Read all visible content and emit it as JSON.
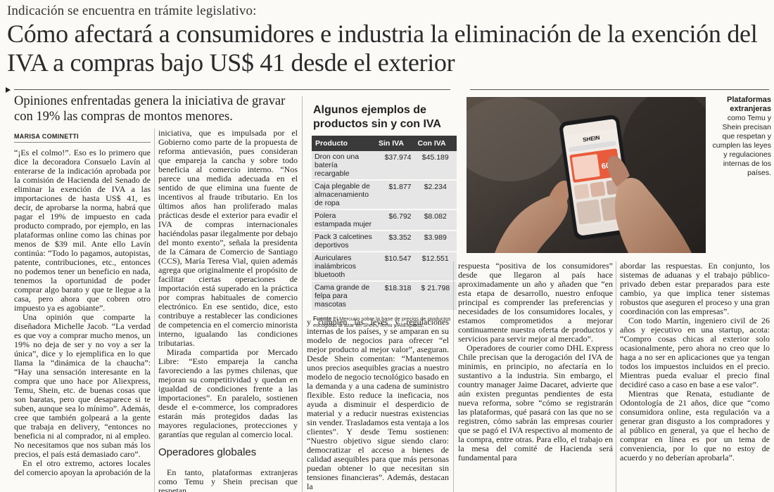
{
  "kicker": "Indicación se encuentra en trámite legislativo:",
  "headline": "Cómo afectará a consumidores e industria la eliminación de la exención del IVA a compras bajo US$ 41 desde el exterior",
  "subhead": "Opiniones enfrentadas genera la iniciativa de gravar con 19% las compras de montos menores.",
  "byline": "MARISA COMINETTI",
  "col1": [
    "“¡Es el colmo!”. Eso es lo primero que dice la decoradora Consuelo Lavín al enterarse de la indicación aprobada por la comisión de Hacienda del Senado de eliminar la exención de IVA a las importaciones de hasta US$ 41, es decir, de aprobarse la norma, habrá que pagar el 19% de impuesto en cada producto comprado, por ejemplo, en las plataformas online como las chinas por menos de $39 mil. Ante ello Lavín continúa: “Todo lo pagamos, autopistas, patente, contribuciones, etc., entonces no podemos tener un beneficio en nada, tenemos la oportunidad de poder comprar algo barato y que te llegue a la casa, pero ahora que cobren otro impuesto ya es agobiante”.",
    "Una opinión que comparte la diseñadora Michelle Jacob. “La verdad es que voy a comprar mucho menos, un 19% no deja de ser y no voy a ser la única”, dice y lo ejemplifica en lo que llama la “dinámica de la chaucha”: “Hay una sensación interesante en la compra que uno hace por Aliexpress, Temu, Shein, etc. de buenas cosas que son baratas, pero que desaparece si te suben, aunque sea lo mínimo”. Además, cree que también golpeará a la gente que trabaja en delivery, “entonces no beneficia ni al comprador, ni al empleo. No necesitamos que nos suban más los precios, el país está demasiado caro”.",
    "En el otro extremo, actores locales del comercio apoyan la aprobación de la"
  ],
  "col2": [
    "iniciativa, que es impulsada por el Gobierno como parte de la propuesta de reforma antievasión, pues consideran que empareja la cancha y sobre todo beneficia al comercio interno. “Nos parece una medida adecuada en el sentido de que elimina una fuente de incentivos al fraude tributario. En los últimos años han proliferado malas prácticas desde el exterior para evadir el IVA de compras internacionales haciéndolas pasar ilegalmente por debajo del monto exento”, señala la presidenta de la Cámara de Comercio de Santiago (CCS), María Teresa Vial, quien además agrega que originalmente el propósito de facilitar ciertas operaciones de importación está superado en la práctica por compras habituales de comercio electrónico. En ese sentido, dice, esto contribuye a restablecer las condiciones de competencia en el comercio minorista interno, igualando las condiciones tributarias.",
    "Mirada compartida por Mercado Libre: “Esto empareja la cancha favoreciendo a las pymes chilenas, que mejoran su competitividad y quedan en igualdad de condiciones frente a las importaciones”. En paralelo, sostienen desde el e-commerce, los compradores estarán más protegidos dadas las mayores regulaciones, protecciones y garantías que regulan al comercio local."
  ],
  "col2_section": "Operadores globales",
  "col2_after": "En tanto, plataformas extranjeras como Temu y Shein precisan que respetan",
  "col3": [
    "y cumplen las leyes y regulaciones internas de los países, y se amparan en su modelo de negocios para ofrecer “el mejor producto al mejor valor”, aseguran. Desde Shein comentan: “Mantenemos unos precios asequibles gracias a nuestro modelo de negocio tecnológico basado en la demanda y a una cadena de suministro flexible. Esto reduce la ineficacia, nos ayuda a disminuir el desperdicio de material y a reducir nuestras existencias sin vender. Trasladamos esta ventaja a los clientes”. Y desde Temu sostienen: “Nuestro objetivo sigue siendo claro: democratizar el acceso a bienes de calidad asequibles para que más personas puedan obtener lo que necesitan sin tensiones financieras”. Además, destacan la"
  ],
  "col4": [
    "respuesta “positiva de los consumidores” desde que llegaron al país hace aproximadamente un año y añaden que “en esta etapa de desarrollo, nuestro enfoque principal es comprender las preferencias y necesidades de los consumidores locales, y estamos comprometidos a mejorar continuamente nuestra oferta de productos y servicios para servir mejor al mercado”.",
    "Operadores de courier como DHL Express Chile precisan que la derogación del IVA de minimis, en principio, no afectaría en lo sustantivo a la industria. Sin embargo, el country manager Jaime Dacaret, advierte que aún existen preguntas pendientes de esta nueva reforma, sobre “cómo se registrarán las plataformas, qué pasará con las que no se registren, cómo sabrán las empresas courier que se pagó el IVA respectivo al momento de la compra, entre otras. Para ello, el trabajo en la mesa del comité de Hacienda será fundamental para"
  ],
  "col5": [
    "abordar las respuestas. En conjunto, los sistemas de aduanas y el trabajo público-privado deben estar preparados para este cambio, ya que implica tener sistemas robustos que aseguren el proceso y una gran coordinación con las empresas”.",
    "Con todo Martín, ingeniero civil de 26 años y ejecutivo en una startup, acota: “Compro cosas chicas al exterior solo ocasionalmente, pero ahora no creo que lo haga a no ser en aplicaciones que ya tengan todos los impuestos incluidos en el precio. Mientras pueda evaluar el precio final decidiré caso a caso en base a ese valor”.",
    "Mientras que Renata, estudiante de Odontología de 21 años, dice que “como consumidora online, esta regulación va a generar gran disgusto a los compradores y al público en general, ya que el hecho de comprar en línea es por un tema de conveniencia, por lo que no estoy de acuerdo y no deberían aprobarla”."
  ],
  "box": {
    "title": "Algunos ejemplos de productos sin y con IVA",
    "headers": [
      "Producto",
      "Sin IVA",
      "Con IVA"
    ],
    "rows": [
      [
        "Dron con una batería recargable",
        "$37.974",
        "$45.189"
      ],
      [
        "Caja plegable de almacenamiento de ropa",
        "$1.877",
        "$2.234"
      ],
      [
        "Polera estampada mujer",
        "$6.792",
        "$8.082"
      ],
      [
        "Pack 3 calcetines deportivos",
        "$3.352",
        "$3.989"
      ],
      [
        "Auriculares inalámbricos bluetooth",
        "$10.547",
        "$12.551"
      ],
      [
        "Cama grande de felpa para mascotas",
        "$18.318",
        "$ 21.798"
      ]
    ],
    "source_label": "Fuente",
    "source_text": "El Mercurio sobre la base de precios de productos escogidos al azar en Shein, Temu y AliExpress."
  },
  "photo": {
    "app_name": "SHEIN",
    "promo": "60%",
    "caption_title": "Plataformas extranjeras",
    "caption_text": "como Temu y Shein precisan que respetan y cumplen las leyes y regulaciones internas de los países."
  }
}
